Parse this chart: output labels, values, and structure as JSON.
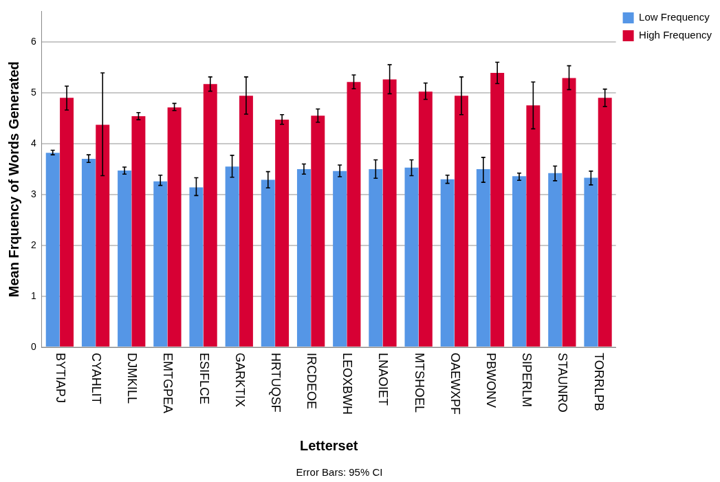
{
  "chart_data": {
    "type": "bar",
    "xlabel": "Letterset",
    "ylabel": "Mean Frquency of Words Generated",
    "categories": [
      "BYTIAPJ",
      "CYAHLIT",
      "DJMKILL",
      "EMTGPEA",
      "ESIFLCE",
      "GARKTIX",
      "HRTUQSF",
      "IRCDEOE",
      "LEOXBWH",
      "LNAOIET",
      "MTSHOEL",
      "OAEWXPF",
      "PBWONV",
      "SIPERLM",
      "STAUNRO",
      "TORRLPB"
    ],
    "series": [
      {
        "name": "Low Frequency",
        "color": "#5596e6",
        "values": [
          3.82,
          3.7,
          3.47,
          3.26,
          3.14,
          3.55,
          3.29,
          3.5,
          3.46,
          3.5,
          3.53,
          3.3,
          3.5,
          3.36,
          3.42,
          3.33
        ],
        "errors": [
          [
            3.78,
            3.87
          ],
          [
            3.63,
            3.78
          ],
          [
            3.4,
            3.54
          ],
          [
            3.18,
            3.38
          ],
          [
            2.98,
            3.33
          ],
          [
            3.34,
            3.77
          ],
          [
            3.13,
            3.45
          ],
          [
            3.4,
            3.6
          ],
          [
            3.35,
            3.58
          ],
          [
            3.32,
            3.68
          ],
          [
            3.37,
            3.68
          ],
          [
            3.22,
            3.38
          ],
          [
            3.24,
            3.73
          ],
          [
            3.28,
            3.42
          ],
          [
            3.27,
            3.56
          ],
          [
            3.19,
            3.46
          ]
        ]
      },
      {
        "name": "High Frequency",
        "color": "#d70034",
        "values": [
          4.9,
          4.37,
          4.54,
          4.71,
          5.17,
          4.94,
          4.47,
          4.55,
          5.21,
          5.26,
          5.02,
          4.94,
          5.39,
          4.75,
          5.29,
          4.9
        ],
        "errors": [
          [
            4.66,
            5.13
          ],
          [
            3.37,
            5.39
          ],
          [
            4.47,
            4.61
          ],
          [
            4.65,
            4.79
          ],
          [
            5.03,
            5.31
          ],
          [
            4.58,
            5.31
          ],
          [
            4.38,
            4.57
          ],
          [
            4.42,
            4.68
          ],
          [
            5.08,
            5.35
          ],
          [
            4.98,
            5.55
          ],
          [
            4.87,
            5.19
          ],
          [
            4.57,
            5.31
          ],
          [
            5.18,
            5.6
          ],
          [
            4.29,
            5.21
          ],
          [
            5.06,
            5.53
          ],
          [
            4.73,
            5.07
          ]
        ]
      }
    ],
    "ylim": [
      0,
      6.6
    ],
    "yticks": [
      0,
      1,
      2,
      3,
      4,
      5,
      6
    ],
    "grid": "y",
    "legend": "top right",
    "annotations": [
      "Error Bars: 95% CI"
    ]
  }
}
